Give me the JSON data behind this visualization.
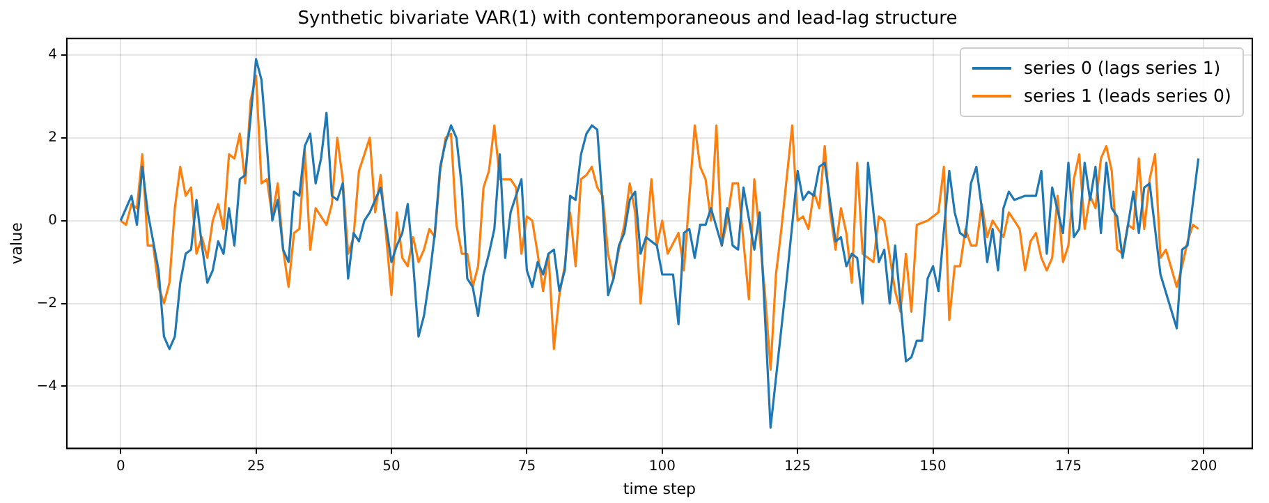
{
  "chart_data": {
    "type": "line",
    "title": "Synthetic bivariate VAR(1) with contemporaneous and lead-lag structure",
    "xlabel": "time step",
    "ylabel": "value",
    "xlim": [
      -9.95,
      208.95
    ],
    "xticks": [
      0,
      25,
      50,
      75,
      100,
      125,
      150,
      175,
      200
    ],
    "ylim": [
      -5.5,
      4.4
    ],
    "yticks": [
      -4,
      -2,
      0,
      2,
      4
    ],
    "grid": true,
    "legend": "top right",
    "marker": "none",
    "line_style": "solid",
    "series": [
      {
        "name": "series 0 (lags series 1)",
        "color": "#1f77b4",
        "x": [
          0,
          2,
          3,
          4,
          5,
          6,
          7,
          8,
          9,
          10,
          11,
          12,
          13,
          14,
          15,
          16,
          17,
          18,
          19,
          20,
          21,
          22,
          23,
          24,
          25,
          26,
          27,
          28,
          29,
          30,
          31,
          32,
          33,
          34,
          35,
          36,
          37,
          38,
          39,
          40,
          41,
          42,
          43,
          44,
          45,
          46,
          47,
          48,
          49,
          50,
          51,
          52,
          53,
          54,
          55,
          56,
          57,
          58,
          59,
          60,
          61,
          62,
          63,
          64,
          65,
          66,
          67,
          68,
          69,
          70,
          71,
          72,
          73,
          74,
          75,
          76,
          77,
          78,
          79,
          80,
          81,
          82,
          83,
          84,
          85,
          86,
          87,
          88,
          89,
          90,
          91,
          92,
          93,
          94,
          95,
          96,
          97,
          99,
          100,
          102,
          103,
          104,
          105,
          106,
          107,
          108,
          109,
          111,
          112,
          113,
          114,
          115,
          117,
          118,
          120,
          123,
          125,
          126,
          127,
          128,
          129,
          130,
          132,
          133,
          134,
          135,
          136,
          137,
          138,
          140,
          141,
          142,
          143,
          145,
          146,
          147,
          148,
          149,
          150,
          151,
          153,
          154,
          155,
          156,
          157,
          158,
          159,
          160,
          161,
          162,
          163,
          164,
          165,
          167,
          169,
          170,
          171,
          172,
          174,
          175,
          176,
          177,
          178,
          179,
          180,
          181,
          182,
          183,
          184,
          185,
          186,
          187,
          188,
          189,
          190,
          192,
          195,
          196,
          197,
          199
        ],
        "values": [
          0,
          0.6,
          -0.1,
          1.3,
          0.2,
          -0.5,
          -1.2,
          -2.8,
          -3.1,
          -2.8,
          -1.5,
          -0.8,
          -0.7,
          0.5,
          -0.6,
          -1.5,
          -1.2,
          -0.5,
          -0.8,
          0.3,
          -0.6,
          1.0,
          1.1,
          2.5,
          3.9,
          3.4,
          1.8,
          0,
          0.5,
          -0.7,
          -1.0,
          0.7,
          0.6,
          1.8,
          2.1,
          0.9,
          1.5,
          2.6,
          0.6,
          0.5,
          0.9,
          -1.4,
          -0.3,
          -0.5,
          0,
          0.2,
          0.5,
          0.8,
          -0.1,
          -1.0,
          -0.6,
          -0.3,
          0.4,
          -1.0,
          -2.8,
          -2.3,
          -1.4,
          -0.3,
          1.3,
          1.9,
          2.3,
          2.0,
          0.8,
          -1.4,
          -1.6,
          -2.3,
          -1.3,
          -0.8,
          -0.2,
          1.6,
          -0.9,
          0.2,
          0.6,
          1.0,
          -1.2,
          -1.6,
          -1.0,
          -1.3,
          -0.8,
          -0.7,
          -1.7,
          -1.2,
          0.6,
          0.5,
          1.6,
          2.1,
          2.3,
          2.2,
          0.4,
          -1.8,
          -1.4,
          -0.6,
          -0.3,
          0.5,
          0.7,
          -0.8,
          -0.4,
          -0.6,
          -1.3,
          -1.3,
          -2.5,
          -0.3,
          -0.2,
          -0.9,
          -0.1,
          -0.1,
          0.3,
          -0.6,
          0.3,
          -0.6,
          -0.7,
          0.8,
          -0.7,
          0.2,
          -5.0,
          -1.4,
          1.2,
          0.5,
          0.7,
          0.6,
          1.3,
          1.4,
          -0.5,
          -0.4,
          -1.1,
          -0.8,
          -0.9,
          -2.0,
          1.4,
          -1.0,
          -0.7,
          -2.0,
          -0.6,
          -3.4,
          -3.3,
          -2.9,
          -2.9,
          -1.4,
          -1.1,
          -1.7,
          1.2,
          0.2,
          -0.3,
          -0.4,
          0.9,
          1.3,
          0.3,
          -1.0,
          -0.2,
          -1.2,
          0.3,
          0.7,
          0.5,
          0.6,
          0.6,
          1.2,
          -0.8,
          0.8,
          -0.3,
          1.4,
          -0.4,
          -0.2,
          1.4,
          0.5,
          1.3,
          -0.3,
          1.4,
          0.3,
          0.1,
          -0.9,
          -0.1,
          0.7,
          -0.3,
          0.8,
          0.9,
          -1.3,
          -2.6,
          -0.7,
          -0.6,
          1.5
        ]
      },
      {
        "name": "series 1 (leads series 0)",
        "color": "#ff7f0e",
        "x": [
          0,
          1,
          2,
          3,
          4,
          5,
          6,
          7,
          8,
          9,
          10,
          11,
          12,
          13,
          14,
          15,
          16,
          17,
          18,
          19,
          20,
          21,
          22,
          23,
          24,
          25,
          26,
          27,
          28,
          29,
          30,
          31,
          32,
          33,
          34,
          35,
          36,
          37,
          38,
          39,
          40,
          41,
          42,
          43,
          44,
          46,
          47,
          48,
          50,
          51,
          52,
          53,
          54,
          55,
          56,
          57,
          58,
          59,
          60,
          61,
          62,
          63,
          64,
          65,
          66,
          67,
          68,
          69,
          70,
          72,
          73,
          74,
          75,
          76,
          77,
          78,
          79,
          80,
          81,
          82,
          83,
          84,
          85,
          86,
          87,
          88,
          89,
          90,
          91,
          92,
          93,
          94,
          95,
          96,
          97,
          98,
          99,
          100,
          101,
          103,
          104,
          106,
          107,
          108,
          109,
          110,
          111,
          112,
          113,
          114,
          116,
          117,
          119,
          120,
          121,
          122,
          124,
          125,
          126,
          127,
          128,
          129,
          130,
          131,
          132,
          133,
          134,
          135,
          136,
          137,
          139,
          140,
          141,
          143,
          144,
          145,
          146,
          147,
          149,
          150,
          151,
          152,
          153,
          154,
          155,
          156,
          157,
          158,
          159,
          160,
          161,
          162,
          163,
          164,
          165,
          166,
          167,
          168,
          169,
          170,
          171,
          172,
          173,
          174,
          175,
          176,
          177,
          178,
          179,
          180,
          181,
          182,
          183,
          184,
          185,
          186,
          187,
          188,
          189,
          190,
          191,
          192,
          193,
          195,
          196,
          197,
          198,
          199
        ],
        "values": [
          0,
          -0.1,
          0.4,
          0.3,
          1.6,
          -0.6,
          -0.6,
          -1.6,
          -2.0,
          -1.5,
          0.3,
          1.3,
          0.6,
          0.8,
          -0.8,
          -0.4,
          -0.9,
          0,
          0.4,
          -0.2,
          1.6,
          1.5,
          2.1,
          0.9,
          2.9,
          3.5,
          0.9,
          1.0,
          0.1,
          0.9,
          -0.7,
          -1.6,
          -0.3,
          -0.2,
          1.7,
          -0.7,
          0.3,
          0.1,
          -0.1,
          0.4,
          2.0,
          1.0,
          -0.8,
          -0.4,
          1.2,
          2.0,
          0.2,
          1.1,
          -1.8,
          0.2,
          -0.9,
          -1.1,
          -0.4,
          -1.0,
          -0.7,
          -0.2,
          -0.4,
          1.2,
          2.0,
          2.1,
          -0.1,
          -0.8,
          -0.8,
          -1.6,
          -1.1,
          0.8,
          1.2,
          2.3,
          1.0,
          1.0,
          0.8,
          -0.8,
          0.1,
          0,
          -0.8,
          -1.7,
          -0.8,
          -3.1,
          -1.8,
          -1.1,
          0.2,
          -1.1,
          1.0,
          1.1,
          1.3,
          0.8,
          0.6,
          -0.8,
          -1.4,
          -0.7,
          -0.1,
          0.9,
          0.2,
          -2.0,
          -0.5,
          1.0,
          -0.6,
          0.0,
          -0.8,
          -0.3,
          -1.2,
          2.3,
          1.3,
          1.0,
          0,
          2.3,
          -0.6,
          0,
          0.9,
          0.9,
          -1.9,
          1.0,
          -1.8,
          -3.6,
          -1.3,
          -0.2,
          2.3,
          0,
          0.1,
          -0.2,
          0.7,
          0.3,
          1.8,
          0.2,
          -0.7,
          0.3,
          -0.3,
          -1.5,
          1.4,
          -0.8,
          -1.0,
          0.1,
          0,
          -1.7,
          -2.2,
          -0.8,
          -2.2,
          -0.1,
          0.0,
          0.1,
          0.2,
          1.3,
          -2.4,
          -1.1,
          -1.1,
          -0.2,
          -0.6,
          -0.6,
          0.4,
          -0.4,
          0,
          -0.2,
          -0.4,
          0.2,
          0,
          -0.2,
          -1.2,
          -0.5,
          -0.3,
          -0.9,
          -1.2,
          -0.9,
          0.6,
          -1.0,
          -0.6,
          1.0,
          1.6,
          -0.2,
          0.6,
          0.3,
          1.5,
          1.8,
          1.2,
          -0.7,
          -0.8,
          -0.1,
          -0.2,
          1.5,
          -0.2,
          1.0,
          1.6,
          -0.9,
          -0.7,
          -1.6,
          -1.1,
          -0.5,
          -0.1,
          -0.2
        ]
      }
    ]
  }
}
